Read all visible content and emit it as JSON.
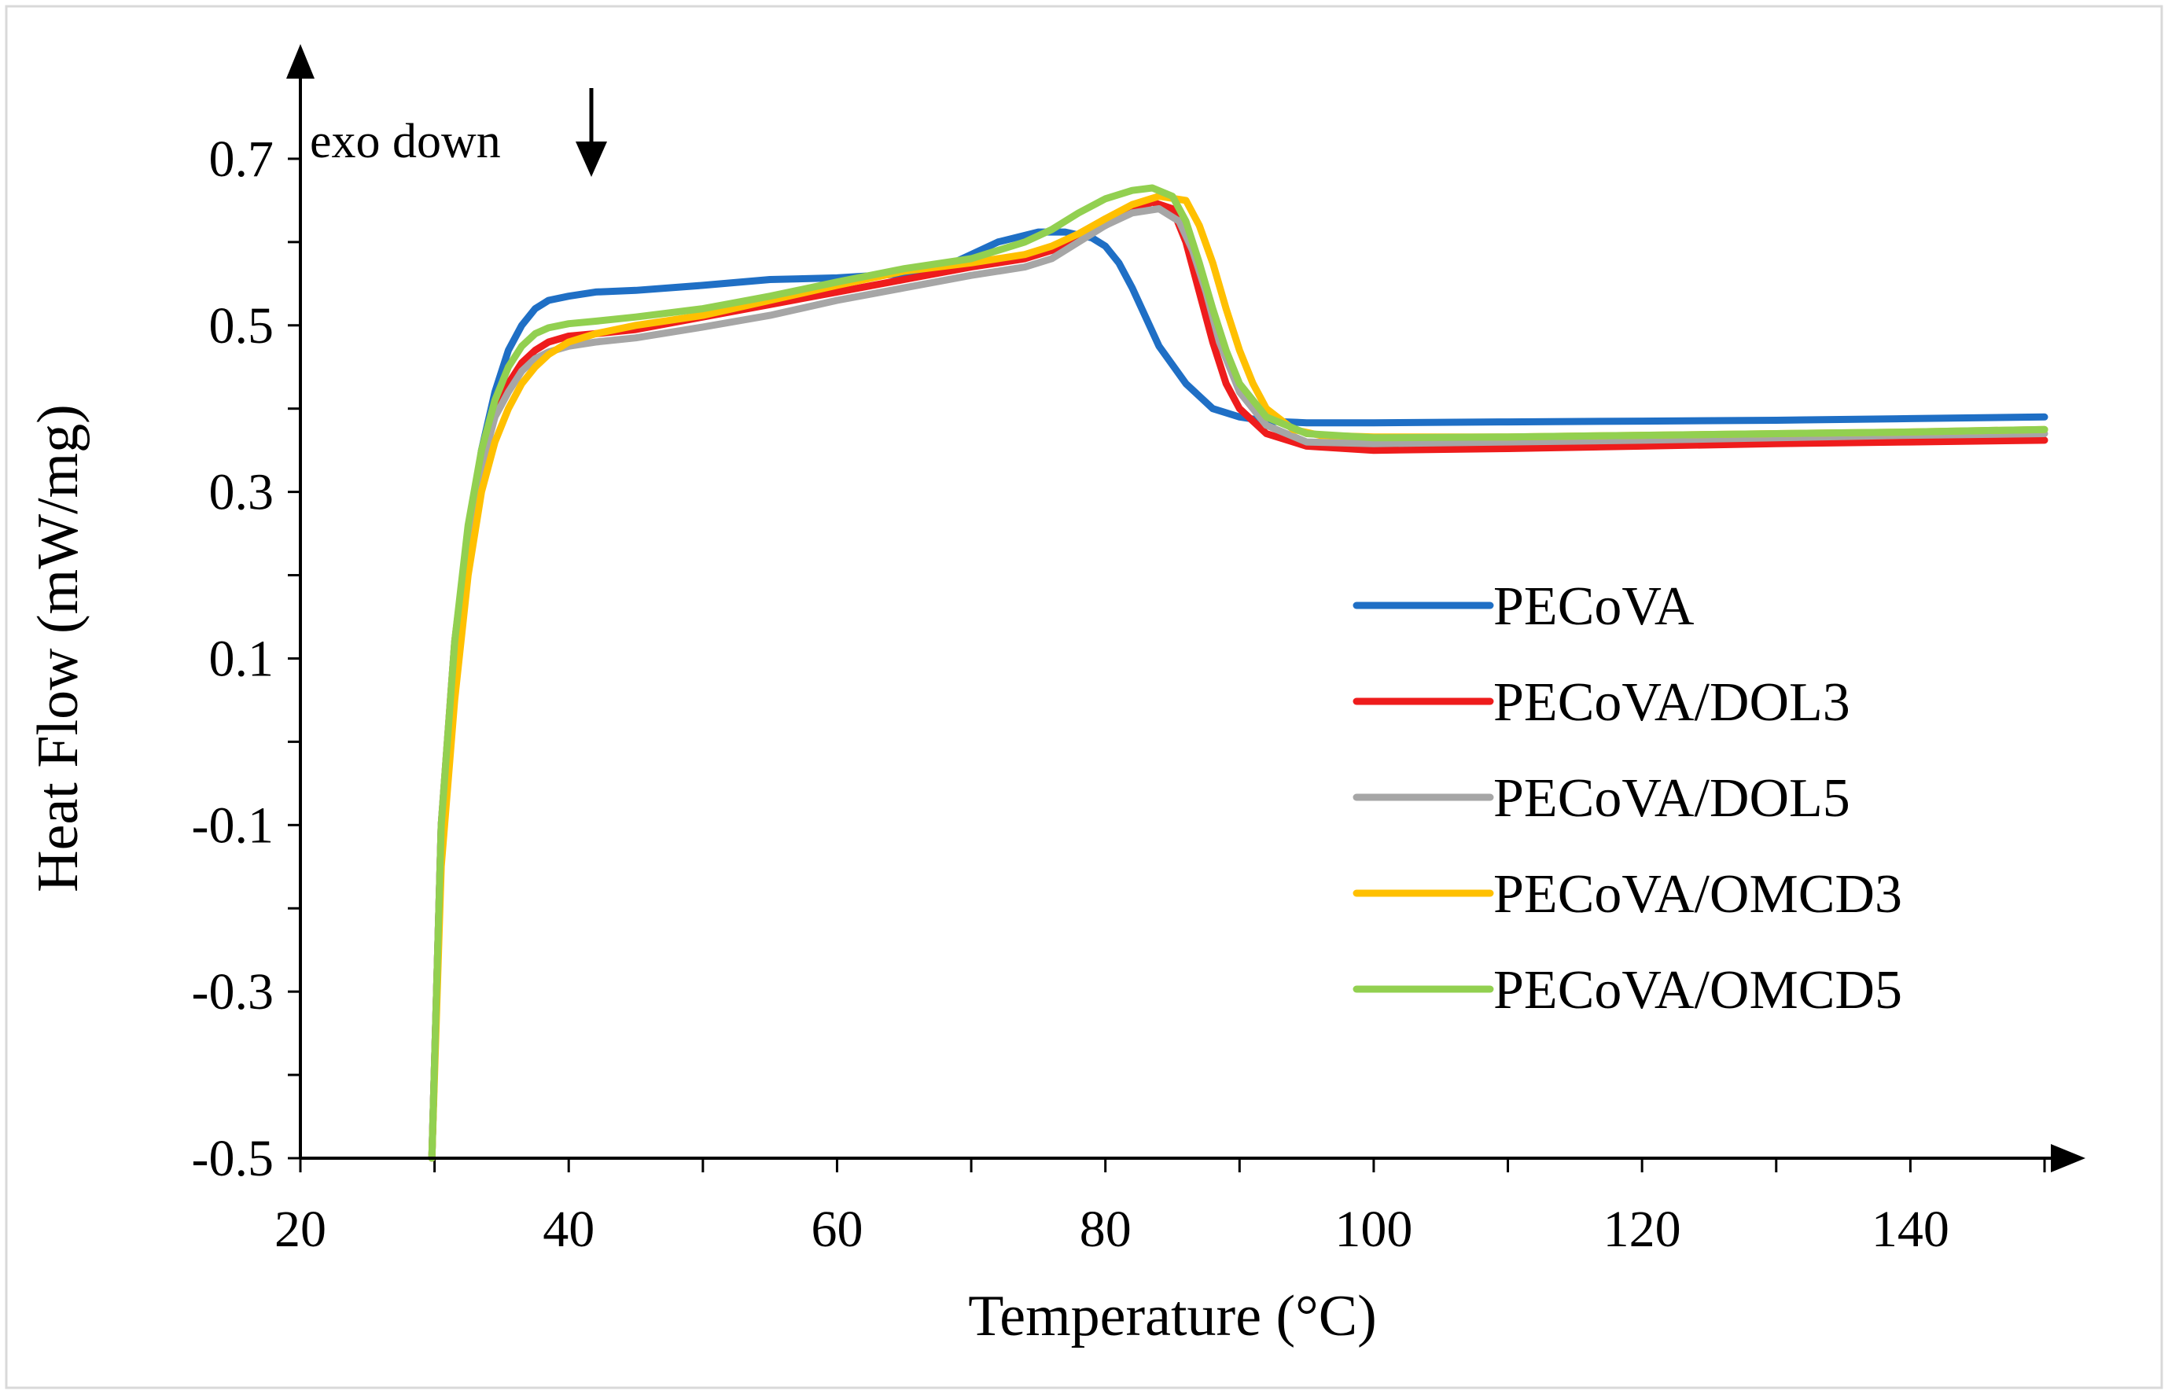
{
  "chart_data": {
    "type": "line",
    "xlabel": "Temperature (°C)",
    "ylabel": "Heat Flow  (mW/mg)",
    "annotation": "exo down",
    "xlim": [
      20,
      150
    ],
    "ylim": [
      -0.5,
      0.8
    ],
    "xticks": [
      20,
      40,
      60,
      80,
      100,
      120,
      140
    ],
    "yticks": [
      -0.5,
      -0.3,
      -0.1,
      0.1,
      0.3,
      0.5,
      0.7
    ],
    "xtick_labels": [
      "20",
      "40",
      "60",
      "80",
      "100",
      "120",
      "140"
    ],
    "ytick_labels": [
      "-0.5",
      "-0.3",
      "-0.1",
      "0.1",
      "0.3",
      "0.5",
      "0.7"
    ],
    "legend_position": "right",
    "series": [
      {
        "name": "PECoVA",
        "color": "#1f6fc5",
        "x": [
          29.8,
          30.5,
          31.5,
          32.5,
          33.5,
          34.5,
          35.5,
          36.5,
          37.5,
          38.5,
          40,
          42,
          45,
          50,
          55,
          60,
          65,
          68,
          70,
          72,
          75,
          77,
          79,
          80,
          81,
          82,
          83,
          84,
          86,
          88,
          90,
          92,
          95,
          100,
          110,
          120,
          130,
          140,
          150
        ],
        "y": [
          -0.5,
          -0.1,
          0.1,
          0.24,
          0.35,
          0.42,
          0.47,
          0.5,
          0.52,
          0.53,
          0.535,
          0.54,
          0.542,
          0.548,
          0.555,
          0.557,
          0.562,
          0.57,
          0.585,
          0.6,
          0.612,
          0.612,
          0.605,
          0.595,
          0.575,
          0.545,
          0.51,
          0.475,
          0.43,
          0.4,
          0.39,
          0.385,
          0.383,
          0.383,
          0.384,
          0.385,
          0.386,
          0.388,
          0.39
        ]
      },
      {
        "name": "PECoVA/DOL3",
        "color": "#ee1c1c",
        "x": [
          29.8,
          30.5,
          31.5,
          32.5,
          33.5,
          34.5,
          35.5,
          36.5,
          37.5,
          38.5,
          40,
          42,
          45,
          50,
          55,
          60,
          65,
          70,
          74,
          76,
          78,
          80,
          82,
          83.5,
          85,
          86,
          87,
          88,
          89,
          90,
          92,
          95,
          100,
          110,
          120,
          130,
          140,
          150
        ],
        "y": [
          -0.5,
          -0.1,
          0.12,
          0.25,
          0.34,
          0.4,
          0.43,
          0.455,
          0.47,
          0.48,
          0.487,
          0.49,
          0.495,
          0.51,
          0.525,
          0.54,
          0.555,
          0.57,
          0.58,
          0.59,
          0.605,
          0.62,
          0.638,
          0.648,
          0.64,
          0.6,
          0.54,
          0.48,
          0.43,
          0.4,
          0.37,
          0.355,
          0.35,
          0.352,
          0.355,
          0.358,
          0.36,
          0.362
        ]
      },
      {
        "name": "PECoVA/DOL5",
        "color": "#a6a6a6",
        "x": [
          29.8,
          30.5,
          31.5,
          32.5,
          33.5,
          34.5,
          35.5,
          36.5,
          37.5,
          38.5,
          40,
          42,
          45,
          50,
          55,
          60,
          65,
          70,
          74,
          76,
          78,
          80,
          82,
          84,
          85.5,
          86.5,
          87.5,
          88.5,
          90,
          92,
          95,
          100,
          110,
          120,
          130,
          140,
          150
        ],
        "y": [
          -0.5,
          -0.1,
          0.12,
          0.24,
          0.33,
          0.39,
          0.42,
          0.445,
          0.46,
          0.468,
          0.475,
          0.48,
          0.485,
          0.498,
          0.512,
          0.53,
          0.545,
          0.56,
          0.57,
          0.58,
          0.6,
          0.62,
          0.635,
          0.64,
          0.625,
          0.59,
          0.54,
          0.48,
          0.42,
          0.38,
          0.36,
          0.358,
          0.36,
          0.362,
          0.365,
          0.368,
          0.37
        ]
      },
      {
        "name": "PECoVA/OMCD3",
        "color": "#ffc000",
        "x": [
          29.8,
          30.5,
          31.5,
          32.5,
          33.5,
          34.5,
          35.5,
          36.5,
          37.5,
          38.5,
          40,
          42,
          45,
          50,
          55,
          60,
          65,
          70,
          74,
          76,
          78,
          80,
          82,
          84,
          86,
          87,
          88,
          89,
          90,
          91,
          92,
          94,
          96,
          100,
          110,
          120,
          130,
          140,
          150
        ],
        "y": [
          -0.5,
          -0.15,
          0.05,
          0.2,
          0.3,
          0.36,
          0.4,
          0.43,
          0.45,
          0.465,
          0.48,
          0.49,
          0.5,
          0.512,
          0.53,
          0.548,
          0.565,
          0.575,
          0.585,
          0.595,
          0.61,
          0.628,
          0.645,
          0.655,
          0.65,
          0.62,
          0.575,
          0.52,
          0.47,
          0.43,
          0.4,
          0.375,
          0.368,
          0.366,
          0.366,
          0.368,
          0.37,
          0.372,
          0.375
        ]
      },
      {
        "name": "PECoVA/OMCD5",
        "color": "#92d050",
        "x": [
          29.8,
          30.5,
          31.5,
          32.5,
          33.5,
          34.5,
          35.5,
          36.5,
          37.5,
          38.5,
          40,
          42,
          45,
          50,
          55,
          60,
          65,
          70,
          74,
          76,
          78,
          80,
          82,
          83.5,
          85,
          86,
          87,
          88,
          89,
          90,
          92,
          95,
          100,
          110,
          120,
          130,
          140,
          150
        ],
        "y": [
          -0.5,
          -0.1,
          0.12,
          0.26,
          0.35,
          0.41,
          0.45,
          0.475,
          0.49,
          0.497,
          0.502,
          0.505,
          0.51,
          0.52,
          0.535,
          0.552,
          0.568,
          0.58,
          0.6,
          0.615,
          0.635,
          0.652,
          0.662,
          0.665,
          0.655,
          0.625,
          0.575,
          0.52,
          0.47,
          0.43,
          0.39,
          0.37,
          0.365,
          0.366,
          0.368,
          0.37,
          0.372,
          0.375
        ]
      }
    ]
  }
}
